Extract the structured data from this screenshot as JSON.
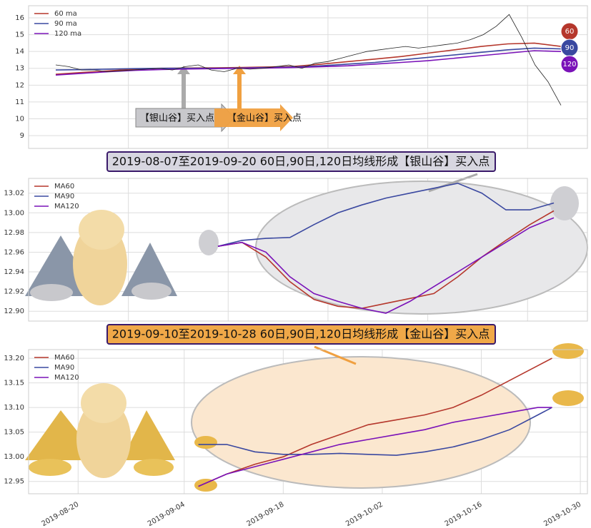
{
  "chart_data": [
    {
      "type": "line",
      "series": [
        {
          "name": "60 ma",
          "color": "#b5372c",
          "values": [
            12.65,
            12.75,
            12.85,
            12.95,
            13.0,
            13.02,
            13.03,
            13.05,
            13.08,
            13.12,
            13.25,
            13.4,
            13.55,
            13.7,
            13.9,
            14.1,
            14.3,
            14.45,
            14.5,
            14.3
          ]
        },
        {
          "name": "90 ma",
          "color": "#3a48a0",
          "values": [
            12.9,
            12.92,
            12.95,
            12.98,
            13.0,
            13.0,
            13.0,
            13.02,
            13.05,
            13.08,
            13.15,
            13.25,
            13.35,
            13.5,
            13.65,
            13.8,
            13.95,
            14.1,
            14.2,
            14.15
          ]
        },
        {
          "name": "120 ma",
          "color": "#7a12b8",
          "values": [
            12.6,
            12.7,
            12.8,
            12.88,
            12.93,
            12.96,
            12.98,
            13.0,
            13.02,
            13.05,
            13.1,
            13.15,
            13.25,
            13.35,
            13.45,
            13.6,
            13.75,
            13.9,
            14.05,
            14.0
          ]
        },
        {
          "color": "#222222",
          "values": [
            13.2,
            13.1,
            12.9,
            12.9,
            12.8,
            12.85,
            12.9,
            12.95,
            13.0,
            12.9,
            13.1,
            13.2,
            12.9,
            12.8,
            13.0,
            12.95,
            13.0,
            13.1,
            13.2,
            13.0,
            13.3,
            13.4,
            13.6,
            13.8,
            14.0,
            14.1,
            14.2,
            14.3,
            14.2,
            14.3,
            14.4,
            14.5,
            14.7,
            15.0,
            15.5,
            16.2,
            14.8,
            13.2,
            12.2,
            10.8
          ]
        }
      ],
      "ylim": [
        8.24,
        16.72
      ],
      "yticks": [
        9,
        10,
        11,
        12,
        13,
        14,
        15,
        16
      ],
      "grid": true,
      "annotations": [
        "【银山谷】买入点",
        "【金山谷】买入点"
      ],
      "badges": [
        "60",
        "90",
        "120"
      ]
    },
    {
      "type": "line",
      "title": "2019-08-07至2019-09-20 60日,90日,120日均线形成【银山谷】买入点",
      "series": [
        {
          "name": "MA60",
          "color": "#b5372c",
          "values": [
            12.966,
            12.97,
            12.955,
            12.93,
            12.912,
            12.905,
            12.903,
            12.908,
            12.913,
            12.918,
            12.935,
            12.955,
            12.972,
            12.988,
            13.002
          ]
        },
        {
          "name": "MA90",
          "color": "#3a48a0",
          "values": [
            12.966,
            12.972,
            12.974,
            12.975,
            12.988,
            13.0,
            13.008,
            13.015,
            13.02,
            13.025,
            13.03,
            13.02,
            13.003,
            13.003,
            13.01
          ]
        },
        {
          "name": "MA120",
          "color": "#7a12b8",
          "values": [
            12.966,
            12.97,
            12.96,
            12.935,
            12.918,
            12.91,
            12.903,
            12.898,
            12.91,
            12.925,
            12.94,
            12.955,
            12.97,
            12.985,
            12.995
          ]
        }
      ],
      "ylim": [
        12.89,
        13.035
      ],
      "yticks": [
        {
          "value": 12.9,
          "label": "12.90"
        },
        12.92,
        12.94,
        12.96,
        12.98,
        {
          "value": 13.0,
          "label": "13.00"
        },
        13.02
      ],
      "grid": true
    },
    {
      "type": "line",
      "title": "2019-09-10至2019-10-28 60日,90日,120日均线形成【金山谷】买入点",
      "x": [
        "2019-09-06",
        "2019-09-10",
        "2019-09-14",
        "2019-09-18",
        "2019-09-22",
        "2019-09-26",
        "2019-09-30",
        "2019-10-04",
        "2019-10-08",
        "2019-10-12",
        "2019-10-16",
        "2019-10-20",
        "2019-10-24",
        "2019-10-26"
      ],
      "series": [
        {
          "name": "MA60",
          "color": "#b5372c",
          "values": [
            12.94,
            12.965,
            12.985,
            13.0,
            13.025,
            13.045,
            13.065,
            13.075,
            13.085,
            13.1,
            13.125,
            13.155,
            13.185,
            13.2
          ]
        },
        {
          "name": "MA90",
          "color": "#3a48a0",
          "values": [
            13.025,
            13.025,
            13.01,
            13.005,
            13.005,
            13.007,
            13.005,
            13.003,
            13.01,
            13.02,
            13.035,
            13.055,
            13.085,
            13.1
          ]
        },
        {
          "name": "MA120",
          "color": "#7a12b8",
          "values": [
            12.94,
            12.965,
            12.98,
            12.995,
            13.01,
            13.025,
            13.035,
            13.045,
            13.055,
            13.07,
            13.08,
            13.09,
            13.1,
            13.1
          ]
        }
      ],
      "xlim": [
        "2019-08-13",
        "2019-10-31"
      ],
      "xticks": [
        "2019-08-20",
        "2019-09-04",
        "2019-09-18",
        "2019-10-02",
        "2019-10-16",
        "2019-10-30"
      ],
      "ylim": [
        12.925,
        13.2175
      ],
      "yticks": [
        12.95,
        {
          "value": 13.0,
          "label": "13.00"
        },
        13.05,
        {
          "value": 13.1,
          "label": "13.10"
        },
        13.15,
        {
          "value": 13.2,
          "label": "13.20"
        }
      ],
      "grid": true
    }
  ]
}
